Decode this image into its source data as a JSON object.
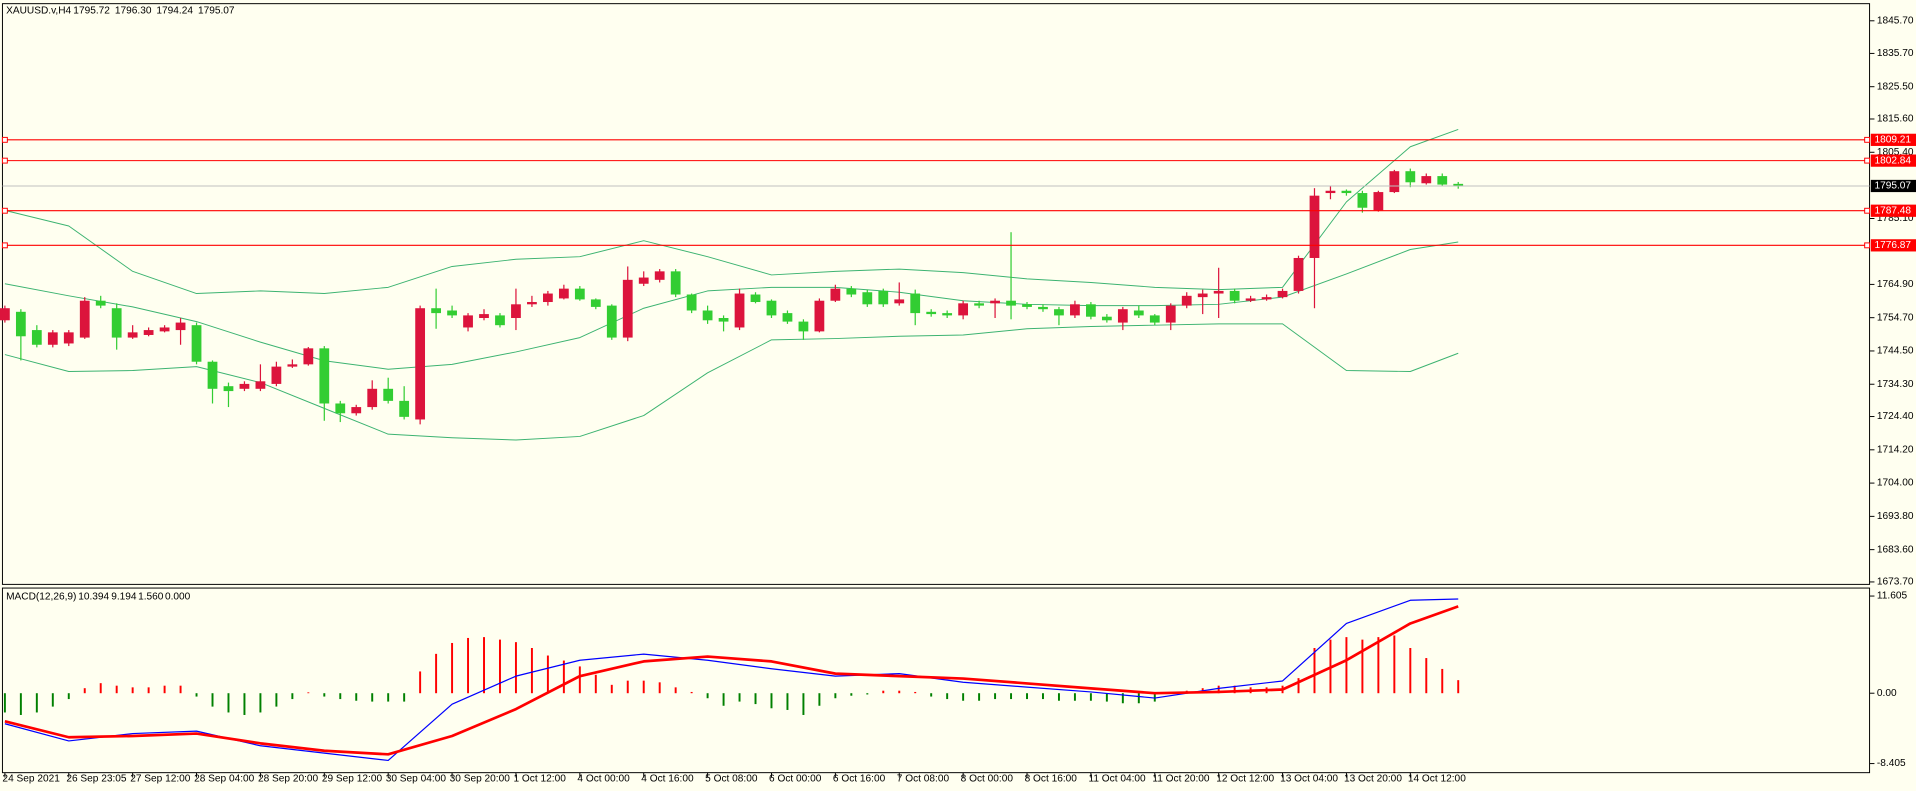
{
  "chart_data": [
    {
      "type": "candlestick",
      "title": "XAUUSD.v,H4",
      "last_bar_labels": [
        "1795.72",
        "1796.30",
        "1794.24",
        "1795.07"
      ],
      "categories": [
        "24 Sep 2021",
        null,
        null,
        null,
        "26 Sep 23:05",
        null,
        null,
        null,
        "27 Sep 12:00",
        null,
        null,
        null,
        "28 Sep 04:00",
        null,
        null,
        null,
        "28 Sep 20:00",
        null,
        null,
        null,
        "29 Sep 12:00",
        null,
        null,
        null,
        "30 Sep 04:00",
        null,
        null,
        null,
        "30 Sep 20:00",
        null,
        null,
        null,
        "1 Oct 12:00",
        null,
        null,
        null,
        "4 Oct 00:00",
        null,
        null,
        null,
        "4 Oct 16:00",
        null,
        null,
        null,
        "5 Oct 08:00",
        null,
        null,
        null,
        "6 Oct 00:00",
        null,
        null,
        null,
        "6 Oct 16:00",
        null,
        null,
        null,
        "7 Oct 08:00",
        null,
        null,
        null,
        "8 Oct 00:00",
        null,
        null,
        null,
        "8 Oct 16:00",
        null,
        null,
        null,
        "11 Oct 04:00",
        null,
        null,
        null,
        "11 Oct 20:00",
        null,
        null,
        null,
        "12 Oct 12:00",
        null,
        null,
        null,
        "13 Oct 04:00",
        null,
        null,
        null,
        "13 Oct 20:00",
        null,
        null,
        null,
        "14 Oct 12:00",
        null,
        null,
        null
      ],
      "open": [
        1753.9,
        1756.5,
        1750.9,
        1746.4,
        1746.8,
        1748.6,
        1759.9,
        1757.6,
        1748.6,
        1749.4,
        1750.5,
        1750.9,
        1752.4,
        1741.2,
        1733.7,
        1732.9,
        1732.9,
        1734.4,
        1739.7,
        1740.4,
        1745.3,
        1728.4,
        1725.4,
        1727.3,
        1732.9,
        1729.2,
        1723.5,
        1757.6,
        1756.9,
        1751.7,
        1754.6,
        1755.4,
        1754.6,
        1758.8,
        1759.5,
        1760.6,
        1763.6,
        1760.3,
        1758.4,
        1748.6,
        1765.1,
        1766.3,
        1768.9,
        1761.8,
        1756.9,
        1754.6,
        1751.7,
        1761.8,
        1759.9,
        1756.1,
        1753.5,
        1750.5,
        1759.9,
        1763.6,
        1762.5,
        1762.9,
        1759.1,
        1762.1,
        1756.5,
        1756.1,
        1755.4,
        1759.1,
        1759.1,
        1759.9,
        1758.8,
        1758.0,
        1757.3,
        1755.4,
        1758.8,
        1755.0,
        1753.2,
        1756.9,
        1755.4,
        1753.2,
        1758.4,
        1761.0,
        1762.1,
        1762.9,
        1759.9,
        1760.3,
        1761.0,
        1762.9,
        1773.0,
        1792.9,
        1793.6,
        1792.9,
        1787.6,
        1793.2,
        1799.6,
        1795.9,
        1798.1,
        1795.72
      ],
      "high": [
        1758.4,
        1757.3,
        1752.4,
        1750.9,
        1750.9,
        1761.0,
        1761.4,
        1759.1,
        1752.4,
        1751.7,
        1752.4,
        1754.6,
        1753.2,
        1741.6,
        1734.8,
        1735.2,
        1740.4,
        1741.2,
        1741.9,
        1745.7,
        1746.0,
        1729.2,
        1728.0,
        1735.5,
        1736.3,
        1733.7,
        1758.4,
        1763.6,
        1758.4,
        1756.1,
        1757.3,
        1756.1,
        1763.6,
        1761.4,
        1762.9,
        1764.8,
        1764.4,
        1760.6,
        1758.8,
        1770.4,
        1768.9,
        1769.6,
        1769.6,
        1762.1,
        1758.4,
        1755.4,
        1763.6,
        1762.5,
        1760.3,
        1756.9,
        1754.2,
        1760.6,
        1764.8,
        1764.4,
        1763.3,
        1763.6,
        1765.5,
        1763.3,
        1757.3,
        1756.9,
        1759.9,
        1759.9,
        1760.6,
        1780.9,
        1759.5,
        1758.8,
        1758.0,
        1759.9,
        1759.5,
        1755.8,
        1758.0,
        1758.4,
        1755.8,
        1759.1,
        1762.5,
        1763.3,
        1770.0,
        1763.6,
        1761.4,
        1761.8,
        1763.6,
        1773.7,
        1794.4,
        1795.1,
        1794.0,
        1793.6,
        1793.6,
        1800.0,
        1800.4,
        1798.9,
        1798.9,
        1796.3
      ],
      "low": [
        1753.2,
        1741.6,
        1745.6,
        1745.6,
        1746.0,
        1748.2,
        1757.6,
        1744.9,
        1748.2,
        1749.0,
        1750.2,
        1746.4,
        1740.4,
        1728.4,
        1727.3,
        1732.2,
        1732.2,
        1733.7,
        1739.3,
        1740.0,
        1723.1,
        1722.7,
        1724.7,
        1726.5,
        1728.4,
        1723.5,
        1722.0,
        1751.3,
        1754.6,
        1750.5,
        1753.9,
        1751.7,
        1750.9,
        1758.0,
        1758.4,
        1760.3,
        1759.9,
        1757.3,
        1747.9,
        1747.5,
        1764.4,
        1765.5,
        1761.0,
        1756.1,
        1752.8,
        1750.5,
        1750.9,
        1759.1,
        1754.6,
        1752.8,
        1747.9,
        1750.2,
        1759.5,
        1761.0,
        1758.0,
        1758.0,
        1758.4,
        1752.4,
        1755.0,
        1754.6,
        1754.2,
        1757.6,
        1754.6,
        1754.2,
        1757.3,
        1756.5,
        1752.4,
        1754.6,
        1754.2,
        1753.2,
        1750.9,
        1754.6,
        1752.4,
        1750.9,
        1757.6,
        1755.8,
        1754.6,
        1759.1,
        1759.5,
        1759.9,
        1760.6,
        1762.1,
        1757.6,
        1791.0,
        1792.1,
        1786.9,
        1787.2,
        1792.9,
        1794.7,
        1795.5,
        1795.1,
        1794.24
      ],
      "close": [
        1757.6,
        1749.0,
        1746.4,
        1750.2,
        1750.2,
        1759.9,
        1758.4,
        1748.6,
        1750.2,
        1750.9,
        1751.7,
        1753.2,
        1741.2,
        1732.9,
        1732.2,
        1734.4,
        1735.2,
        1739.7,
        1740.4,
        1745.3,
        1728.4,
        1725.4,
        1727.3,
        1732.9,
        1729.2,
        1724.3,
        1757.6,
        1756.1,
        1755.4,
        1755.4,
        1755.8,
        1752.4,
        1758.8,
        1759.5,
        1762.1,
        1763.6,
        1760.3,
        1758.0,
        1748.6,
        1766.3,
        1767.0,
        1768.9,
        1761.8,
        1756.9,
        1753.9,
        1753.5,
        1762.1,
        1759.5,
        1755.4,
        1753.5,
        1750.5,
        1759.9,
        1763.6,
        1761.8,
        1758.8,
        1758.8,
        1760.3,
        1756.1,
        1755.8,
        1755.4,
        1759.1,
        1758.4,
        1759.9,
        1758.4,
        1758.0,
        1757.3,
        1755.4,
        1758.8,
        1755.0,
        1753.9,
        1757.3,
        1755.4,
        1753.2,
        1758.4,
        1761.4,
        1762.1,
        1762.9,
        1759.9,
        1760.6,
        1761.0,
        1762.9,
        1773.0,
        1792.1,
        1793.6,
        1792.9,
        1788.4,
        1793.2,
        1799.6,
        1796.2,
        1798.1,
        1795.5,
        1795.07
      ],
      "up_color": "#dc143c",
      "down_color": "#32cd32",
      "price_line_color": "#c0c0c0",
      "bollinger": {
        "color": "#3cb371",
        "x": [
          0,
          4,
          8,
          12,
          16,
          20,
          24,
          28,
          32,
          36,
          40,
          44,
          48,
          52,
          56,
          60,
          64,
          68,
          72,
          76,
          80,
          84,
          88,
          91
        ],
        "upper": [
          1787.6,
          1782.8,
          1768.9,
          1762.1,
          1762.9,
          1762.1,
          1764.0,
          1770.4,
          1772.6,
          1773.4,
          1778.3,
          1773.4,
          1767.8,
          1768.9,
          1769.6,
          1768.5,
          1766.6,
          1765.5,
          1764.0,
          1763.3,
          1764.0,
          1790.2,
          1807.1,
          1812.4
        ],
        "middle": [
          1765.1,
          1761.4,
          1758.0,
          1753.5,
          1747.2,
          1741.5,
          1738.9,
          1740.4,
          1744.2,
          1748.6,
          1757.6,
          1762.9,
          1764.0,
          1764.0,
          1762.5,
          1759.9,
          1758.8,
          1758.4,
          1758.4,
          1758.8,
          1761.0,
          1768.1,
          1775.6,
          1777.9
        ],
        "lower": [
          1743.4,
          1738.2,
          1738.5,
          1739.7,
          1734.8,
          1726.9,
          1719.0,
          1717.9,
          1717.2,
          1718.3,
          1724.7,
          1737.8,
          1747.9,
          1748.3,
          1749.0,
          1749.4,
          1751.3,
          1752.0,
          1752.4,
          1752.8,
          1752.8,
          1738.5,
          1738.2,
          1743.8
        ]
      },
      "levels": {
        "color": "#ff0000",
        "values": [
          1809.21,
          1802.84,
          1787.48,
          1776.87
        ]
      },
      "ylim": [
        1672.95,
        1850.95
      ],
      "yticks": [
        {
          "value": 1845.7,
          "label": "1845.70"
        },
        {
          "value": 1835.7,
          "label": "1835.70"
        },
        {
          "value": 1825.5,
          "label": "1825.50"
        },
        {
          "value": 1815.6,
          "label": "1815.60"
        },
        {
          "value": 1805.4,
          "label": "1805.40"
        },
        {
          "value": 1785.1,
          "label": "1785.10"
        },
        {
          "value": 1764.9,
          "label": "1764.90"
        },
        {
          "value": 1754.7,
          "label": "1754.70"
        },
        {
          "value": 1744.5,
          "label": "1744.50"
        },
        {
          "value": 1734.3,
          "label": "1734.30"
        },
        {
          "value": 1724.4,
          "label": "1724.40"
        },
        {
          "value": 1714.2,
          "label": "1714.20"
        },
        {
          "value": 1704.0,
          "label": "1704.00"
        },
        {
          "value": 1693.8,
          "label": "1693.80"
        },
        {
          "value": 1683.6,
          "label": "1683.60"
        },
        {
          "value": 1673.7,
          "label": "1673.70"
        }
      ]
    },
    {
      "type": "macd",
      "title": "MACD(12,26,9)",
      "header_values": [
        10.394,
        9.194,
        {
          "value": 1.56,
          "label": "1.560"
        },
        {
          "value": 0,
          "label": "0.000"
        }
      ],
      "histogram": {
        "up_color": "#ff0000",
        "down_color": "#008000",
        "values": [
          -2.3,
          -2.6,
          -2.3,
          -1.6,
          -0.7,
          0.6,
          1.2,
          0.9,
          0.7,
          0.7,
          0.9,
          0.9,
          -0.4,
          -1.6,
          -2.3,
          -2.6,
          -2.3,
          -1.6,
          -0.7,
          0.1,
          -0.4,
          -0.7,
          -0.9,
          -1.0,
          -1.0,
          -1.0,
          2.6,
          4.7,
          6.0,
          6.6,
          6.7,
          6.4,
          6.1,
          5.4,
          4.5,
          3.9,
          3.2,
          2.2,
          1.0,
          1.5,
          1.5,
          1.3,
          0.7,
          0.15,
          -0.6,
          -1.5,
          -1.0,
          -1.3,
          -1.8,
          -2.0,
          -2.6,
          -1.5,
          -0.6,
          -0.3,
          -0.15,
          0.3,
          0.3,
          0.15,
          -0.4,
          -0.7,
          -0.9,
          -0.9,
          -0.7,
          -0.7,
          -0.7,
          -0.7,
          -0.9,
          -0.9,
          -0.9,
          -1.0,
          -1.2,
          -1.2,
          -1.0,
          0.15,
          0.3,
          0.6,
          0.9,
          0.9,
          0.7,
          0.7,
          0.9,
          1.8,
          5.4,
          6.4,
          6.7,
          6.4,
          6.7,
          6.9,
          5.4,
          4.2,
          2.9,
          1.56
        ]
      },
      "series": [
        {
          "color": "#0000ff",
          "width": 1,
          "x": [
            0,
            4,
            8,
            12,
            16,
            20,
            24,
            28,
            32,
            36,
            40,
            44,
            48,
            52,
            56,
            60,
            64,
            68,
            72,
            76,
            80,
            84,
            88,
            91
          ],
          "values": [
            -3.65,
            -5.7,
            -4.82,
            -4.53,
            -6.28,
            -7.16,
            -8.03,
            -1.31,
            2.04,
            3.94,
            4.67,
            3.94,
            2.92,
            2.04,
            2.34,
            1.31,
            0.73,
            0.15,
            -0.58,
            0.58,
            1.46,
            8.33,
            11.1,
            11.25
          ]
        },
        {
          "color": "#ff0000",
          "width": 2.2,
          "x": [
            0,
            4,
            8,
            12,
            16,
            20,
            24,
            28,
            32,
            36,
            40,
            44,
            48,
            52,
            56,
            60,
            64,
            68,
            72,
            76,
            80,
            84,
            88,
            91
          ],
          "values": [
            -3.36,
            -5.26,
            -5.11,
            -4.82,
            -5.99,
            -6.87,
            -7.3,
            -5.11,
            -1.9,
            2.04,
            3.8,
            4.38,
            3.8,
            2.34,
            2.04,
            1.75,
            1.17,
            0.58,
            0,
            0.15,
            0.44,
            3.94,
            8.33,
            10.37
          ]
        }
      ],
      "ylim": [
        -9.49,
        12.56
      ],
      "yticks": [
        11.605,
        {
          "value": 0,
          "label": "0.00"
        },
        -8.405
      ]
    }
  ]
}
